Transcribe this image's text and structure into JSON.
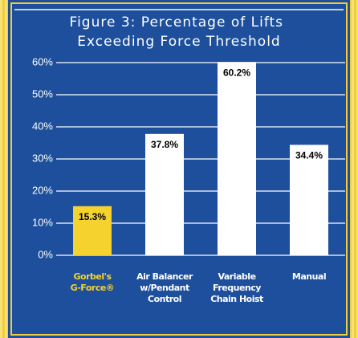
{
  "chart_data": {
    "type": "bar",
    "title": "Figure 3: Percentage of Lifts Exceeding Force Threshold",
    "categories": [
      "Gorbel's G-Force®",
      "Air Balancer w/Pendant Control",
      "Variable Frequency Chain Hoist",
      "Manual"
    ],
    "values": [
      15.3,
      37.8,
      60.2,
      34.4
    ],
    "value_labels": [
      "15.3%",
      "37.8%",
      "60.2%",
      "34.4%"
    ],
    "colors": [
      "#f5d22e",
      "#ffffff",
      "#ffffff",
      "#ffffff"
    ],
    "ylim": [
      0,
      60
    ],
    "yticks": [
      {
        "value": 0,
        "label": "0%"
      },
      {
        "value": 10,
        "label": "10%"
      },
      {
        "value": 20,
        "label": "20%"
      },
      {
        "value": 30,
        "label": "30%"
      },
      {
        "value": 40,
        "label": "40%"
      },
      {
        "value": 50,
        "label": "50%"
      },
      {
        "value": 60,
        "label": "60%"
      }
    ],
    "grid": true
  }
}
